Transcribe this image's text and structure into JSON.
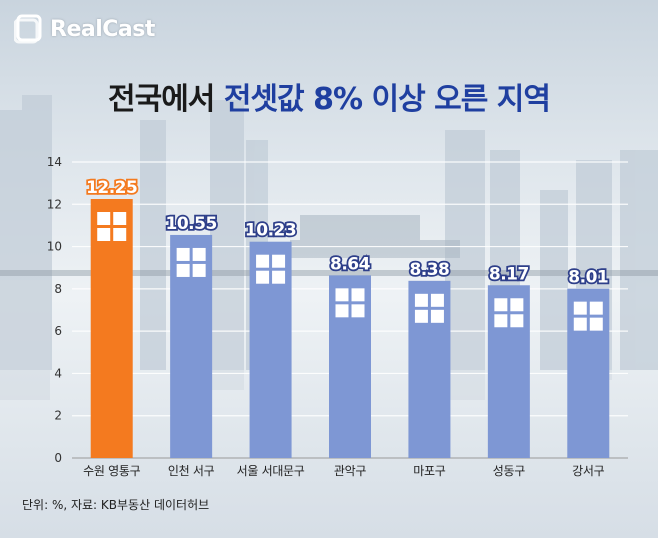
{
  "brand": {
    "logo_text": "RealCast"
  },
  "title": {
    "part1": "전국에서",
    "part2": "전셋값 8% 이상 오른 지역"
  },
  "footer": {
    "note": "단위: %, 자료: KB부동산 데이터허브"
  },
  "colors": {
    "highlight": "#f47a1f",
    "bar": "#7e97d4",
    "title_accent": "#1f3fa0"
  },
  "icons": {
    "bar_icon": "window-icon"
  },
  "chart_data": {
    "type": "bar",
    "title": "전국에서 전셋값 8% 이상 오른 지역",
    "xlabel": "",
    "ylabel": "",
    "unit": "%",
    "ylim": [
      0,
      14
    ],
    "yticks": [
      0,
      2,
      4,
      6,
      8,
      10,
      12,
      14
    ],
    "grid": true,
    "categories": [
      "수원 영통구",
      "인천 서구",
      "서울 서대문구",
      "관악구",
      "마포구",
      "성동구",
      "강서구"
    ],
    "values": [
      12.25,
      10.55,
      10.23,
      8.64,
      8.38,
      8.17,
      8.01
    ],
    "value_labels": [
      "12.25",
      "10.55",
      "10.23",
      "8.64",
      "8.38",
      "8.17",
      "8.01"
    ],
    "highlight_index": 0
  }
}
